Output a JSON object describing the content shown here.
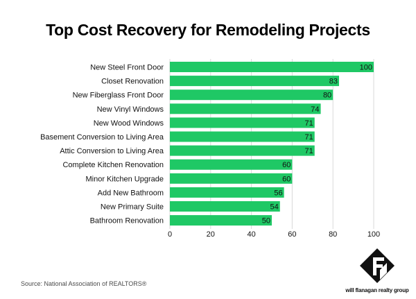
{
  "title": "Top Cost Recovery for Remodeling Projects",
  "source": "Source: National Association of REALTORS®",
  "brand": {
    "name": "will flanagan realty group",
    "icon": "logo-icon"
  },
  "colors": {
    "bar": "#1fc865",
    "grid": "#d9d9d9",
    "text": "#111111"
  },
  "chart_data": {
    "type": "bar",
    "orientation": "horizontal",
    "categories": [
      "New Steel Front Door",
      "Closet Renovation",
      "New Fiberglass Front Door",
      "New Vinyl Windows",
      "New Wood Windows",
      "Basement Conversion to Living Area",
      "Attic Conversion to Living Area",
      "Complete Kitchen Renovation",
      "Minor Kitchen Upgrade",
      "Add New Bathroom",
      "New Primary Suite",
      "Bathroom Renovation"
    ],
    "values": [
      100,
      83,
      80,
      74,
      71,
      71,
      71,
      60,
      60,
      56,
      54,
      50
    ],
    "data_labels": [
      "100",
      "83",
      "80",
      "74",
      "71",
      "71",
      "71",
      "60",
      "60",
      "56",
      "54",
      "50"
    ],
    "xticks": [
      "0",
      "20",
      "40",
      "60",
      "80",
      "100"
    ],
    "xlim": [
      0,
      100
    ],
    "grid": true,
    "legend": "none"
  }
}
